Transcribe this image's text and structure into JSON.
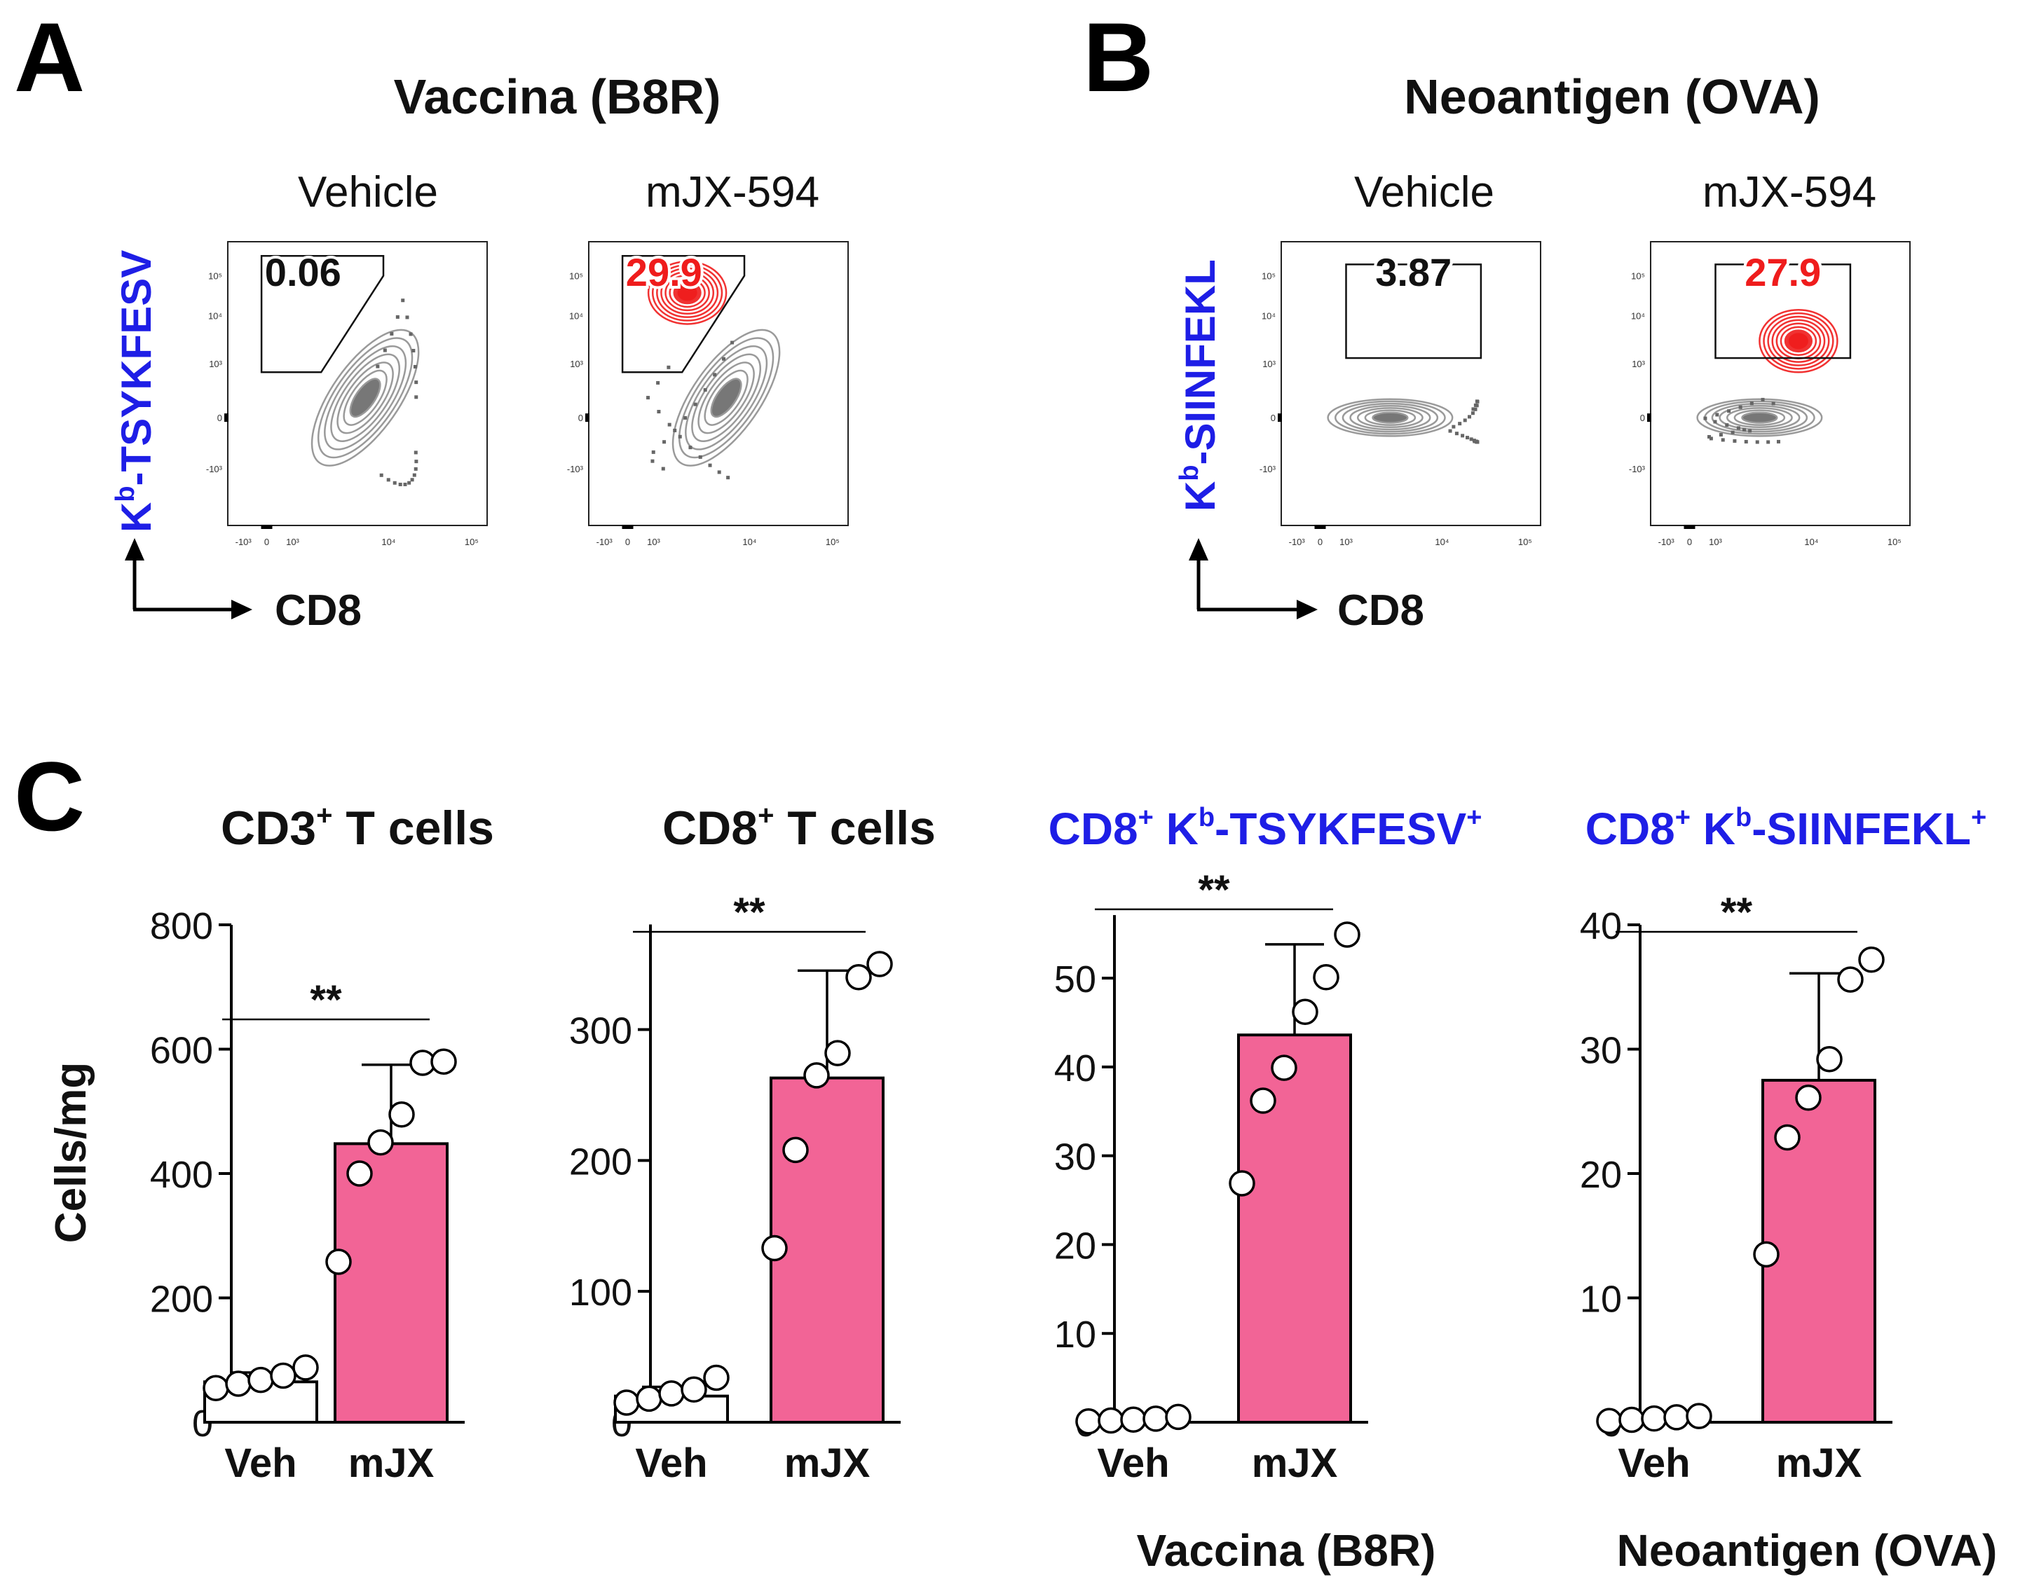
{
  "colors": {
    "text": "#111111",
    "tetramer_blue": "#1e1ee6",
    "gated_red": "#ef1c1c",
    "contour_gray": "#9a9a9a",
    "bar_pink": "#f26496"
  },
  "panels": {
    "A": {
      "letter": "A",
      "title": "Vaccina (B8R)",
      "ylabel_main": "K",
      "ylabel_sup": "b",
      "ylabel_rest": "-TSYKFESV",
      "xlabel": "CD8"
    },
    "B": {
      "letter": "B",
      "title": "Neoantigen (OVA)",
      "ylabel_main": "K",
      "ylabel_sup": "b",
      "ylabel_rest": "-SIINFEKL",
      "xlabel": "CD8"
    },
    "C": {
      "letter": "C",
      "ylabel": "Cells/mg",
      "footer_3": "Vaccina (B8R)",
      "footer_4": "Neoantigen (OVA)"
    }
  },
  "flow_plots": [
    {
      "condition": "Vehicle",
      "gate_value": "0.06"
    },
    {
      "condition": "mJX-594",
      "gate_value": "29.9"
    },
    {
      "condition": "Vehicle",
      "gate_value": "3.87"
    },
    {
      "condition": "mJX-594",
      "gate_value": "27.9"
    }
  ],
  "flow_ticks": {
    "y": [
      "10⁵",
      "10⁴",
      "10³",
      "0",
      "-10³"
    ],
    "x": [
      "-10³",
      "0",
      "10³",
      "10⁴",
      "10⁵"
    ]
  },
  "bar_titles": [
    {
      "a": "CD3",
      "a_sup": "+",
      "b": " T cells"
    },
    {
      "a": "CD8",
      "a_sup": "+",
      "b": " T cells"
    },
    {
      "a": "CD8",
      "a_sup": "+",
      "b": " K",
      "b_sup": "b",
      "c": "-TSYKFESV",
      "c_sup": "+"
    },
    {
      "a": "CD8",
      "a_sup": "+",
      "b": " K",
      "b_sup": "b",
      "c": "-SIINFEKL",
      "c_sup": "+"
    }
  ],
  "chart_data": [
    {
      "type": "bar",
      "title": "CD3+ T cells",
      "ylabel": "Cells/mg",
      "categories": [
        "Veh",
        "mJX"
      ],
      "values": [
        65,
        448
      ],
      "error_upper": [
        80,
        575
      ],
      "points": [
        [
          55,
          62,
          68,
          75,
          88
        ],
        [
          258,
          400,
          450,
          495,
          578,
          580
        ]
      ],
      "yticks": [
        0,
        200,
        400,
        600,
        800
      ],
      "ylim": [
        0,
        800
      ],
      "significance": "**"
    },
    {
      "type": "bar",
      "title": "CD8+ T cells",
      "categories": [
        "Veh",
        "mJX"
      ],
      "values": [
        20,
        263
      ],
      "error_upper": [
        27,
        345
      ],
      "points": [
        [
          15,
          18,
          22,
          25,
          34
        ],
        [
          133,
          208,
          265,
          282,
          340,
          350
        ]
      ],
      "yticks": [
        0,
        100,
        200,
        300
      ],
      "ylim": [
        0,
        380
      ],
      "significance": "**"
    },
    {
      "type": "bar",
      "title": "CD8+ Kb-TSYKFESV+",
      "categories": [
        "Veh",
        "mJX"
      ],
      "values": [
        0.3,
        43.6
      ],
      "error_upper": [
        0.6,
        53.8
      ],
      "points": [
        [
          0.1,
          0.2,
          0.3,
          0.4,
          0.6
        ],
        [
          26.9,
          36.2,
          39.9,
          46.2,
          50.1,
          54.9
        ]
      ],
      "yticks": [
        0,
        10,
        20,
        30,
        40,
        50
      ],
      "ylim": [
        0,
        56
      ],
      "significance": "**"
    },
    {
      "type": "bar",
      "title": "CD8+ Kb-SIINFEKL+",
      "categories": [
        "Veh",
        "mJX"
      ],
      "values": [
        0.3,
        27.5
      ],
      "error_upper": [
        0.5,
        36.1
      ],
      "points": [
        [
          0.1,
          0.2,
          0.3,
          0.4,
          0.5
        ],
        [
          13.5,
          22.9,
          26.1,
          29.2,
          35.6,
          37.2
        ]
      ],
      "yticks": [
        0,
        10,
        20,
        30,
        40
      ],
      "ylim": [
        0,
        40
      ],
      "significance": "**"
    }
  ]
}
